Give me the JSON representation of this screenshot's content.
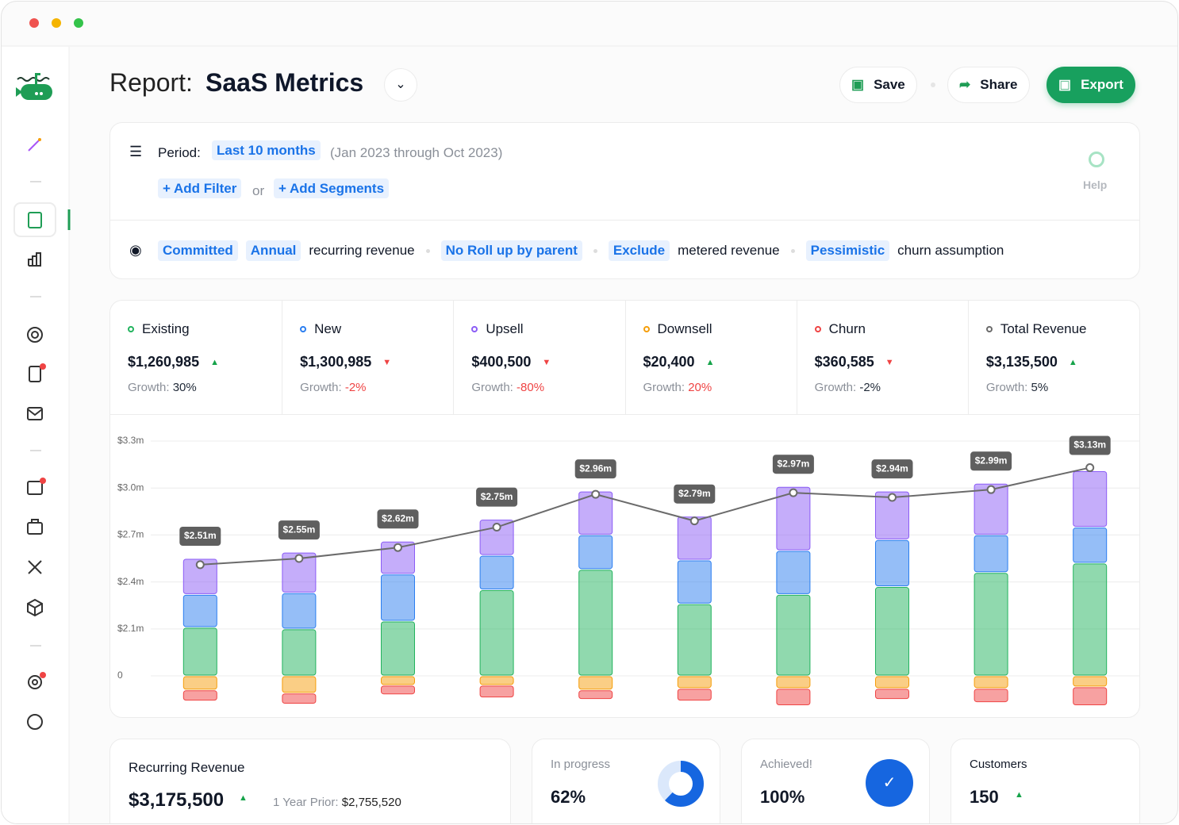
{
  "header": {
    "prefix": "Report:",
    "title": "SaaS Metrics",
    "buttons": [
      "Save",
      "Share",
      "Export"
    ]
  },
  "filters": {
    "period_label": "Period:",
    "period": "Last 10 months",
    "period_range": "(Jan 2023 through Oct 2023)",
    "add_filter": "+ Add Filter",
    "or": "or",
    "add_segments": "+ Add Segments",
    "help": "Help"
  },
  "settings": [
    [
      {
        "text": "Committed",
        "chip": true
      },
      {
        "text": "Annual",
        "chip": true
      },
      {
        "text": "recurring revenue",
        "chip": false
      }
    ],
    [
      {
        "text": "No Roll up by parent",
        "chip": true
      }
    ],
    [
      {
        "text": "Exclude",
        "chip": true
      },
      {
        "text": "metered revenue",
        "chip": false
      }
    ],
    [
      {
        "text": "Pessimistic",
        "chip": true
      },
      {
        "text": "churn assumption",
        "chip": false
      }
    ]
  ],
  "metrics": {
    "growth_label": "Growth:",
    "items": [
      {
        "value": "$1,260,985",
        "trend": "up",
        "growth": "30%",
        "growth_color": "#1f2937"
      },
      {
        "value": "$1,300,985",
        "trend": "down",
        "growth": "-2%",
        "growth_color": "#ef4444"
      },
      {
        "value": "$400,500",
        "trend": "down",
        "growth": "-80%",
        "growth_color": "#ef4444"
      },
      {
        "value": "$20,400",
        "trend": "up",
        "growth": "20%",
        "growth_color": "#ef4444"
      },
      {
        "value": "$360,585",
        "trend": "down",
        "growth": "-2%",
        "growth_color": "#1f2937"
      },
      {
        "value": "$3,135,500",
        "trend": "up",
        "growth": "5%",
        "growth_color": "#1f2937"
      }
    ]
  },
  "chart_data": {
    "type": "bar",
    "stacked": true,
    "ylim": [
      -0.2,
      3.3
    ],
    "ybreak": [
      0,
      1.8
    ],
    "yticks": [
      0,
      {
        "value": 2.1,
        "label": "$2.1m"
      },
      {
        "value": 2.4,
        "label": "$2.4m"
      },
      {
        "value": 2.7,
        "label": "$2.7m"
      },
      {
        "value": 3.0,
        "label": "$3.0m"
      },
      {
        "value": 3.3,
        "label": "$3.3m"
      }
    ],
    "grid": true,
    "categories": [
      null,
      null,
      null,
      null,
      null,
      null,
      null,
      null,
      null,
      null
    ],
    "series": [
      {
        "name": "Existing",
        "color": "#22b35e",
        "values": [
          2.11,
          2.1,
          2.15,
          2.35,
          2.48,
          2.26,
          2.32,
          2.37,
          2.46,
          2.52
        ]
      },
      {
        "name": "New",
        "color": "#2b7ef0",
        "values": [
          0.21,
          0.23,
          0.3,
          0.22,
          0.22,
          0.28,
          0.28,
          0.3,
          0.24,
          0.23
        ]
      },
      {
        "name": "Upsell",
        "color": "#8b5cf6",
        "values": [
          0.23,
          0.26,
          0.21,
          0.23,
          0.28,
          0.28,
          0.41,
          0.31,
          0.33,
          0.36
        ]
      },
      {
        "name": "Downsell",
        "color": "#f59e0b",
        "values": [
          -0.09,
          -0.11,
          -0.06,
          -0.06,
          -0.09,
          -0.08,
          -0.08,
          -0.08,
          -0.08,
          -0.07
        ]
      },
      {
        "name": "Churn",
        "color": "#ef4444",
        "values": [
          -0.07,
          -0.07,
          -0.06,
          -0.08,
          -0.06,
          -0.08,
          -0.11,
          -0.07,
          -0.09,
          -0.12
        ]
      },
      {
        "name": "Total Revenue",
        "color": "#6b6b6b",
        "type": "line",
        "values": [
          2.51,
          2.55,
          2.62,
          2.75,
          2.96,
          2.79,
          2.97,
          2.94,
          2.99,
          3.13
        ],
        "value_labels": [
          "$2.51m",
          "$2.55m",
          "$2.62m",
          "$2.75m",
          "$2.96m",
          "$2.79m",
          "$2.97m",
          "$2.94m",
          "$2.99m",
          "$3.13m"
        ]
      }
    ]
  },
  "summary": {
    "recurring": {
      "title": "Recurring Revenue",
      "value": "$3,175,500",
      "trend": "up",
      "prior_label": "1 Year Prior:",
      "prior": "$2,755,520"
    },
    "progress": {
      "title": "In progress",
      "value": 62,
      "value_label": "62%"
    },
    "achieved": {
      "title": "Achieved!",
      "value_label": "100%"
    },
    "customers": {
      "title": "Customers",
      "value": "150",
      "trend": "up"
    }
  }
}
